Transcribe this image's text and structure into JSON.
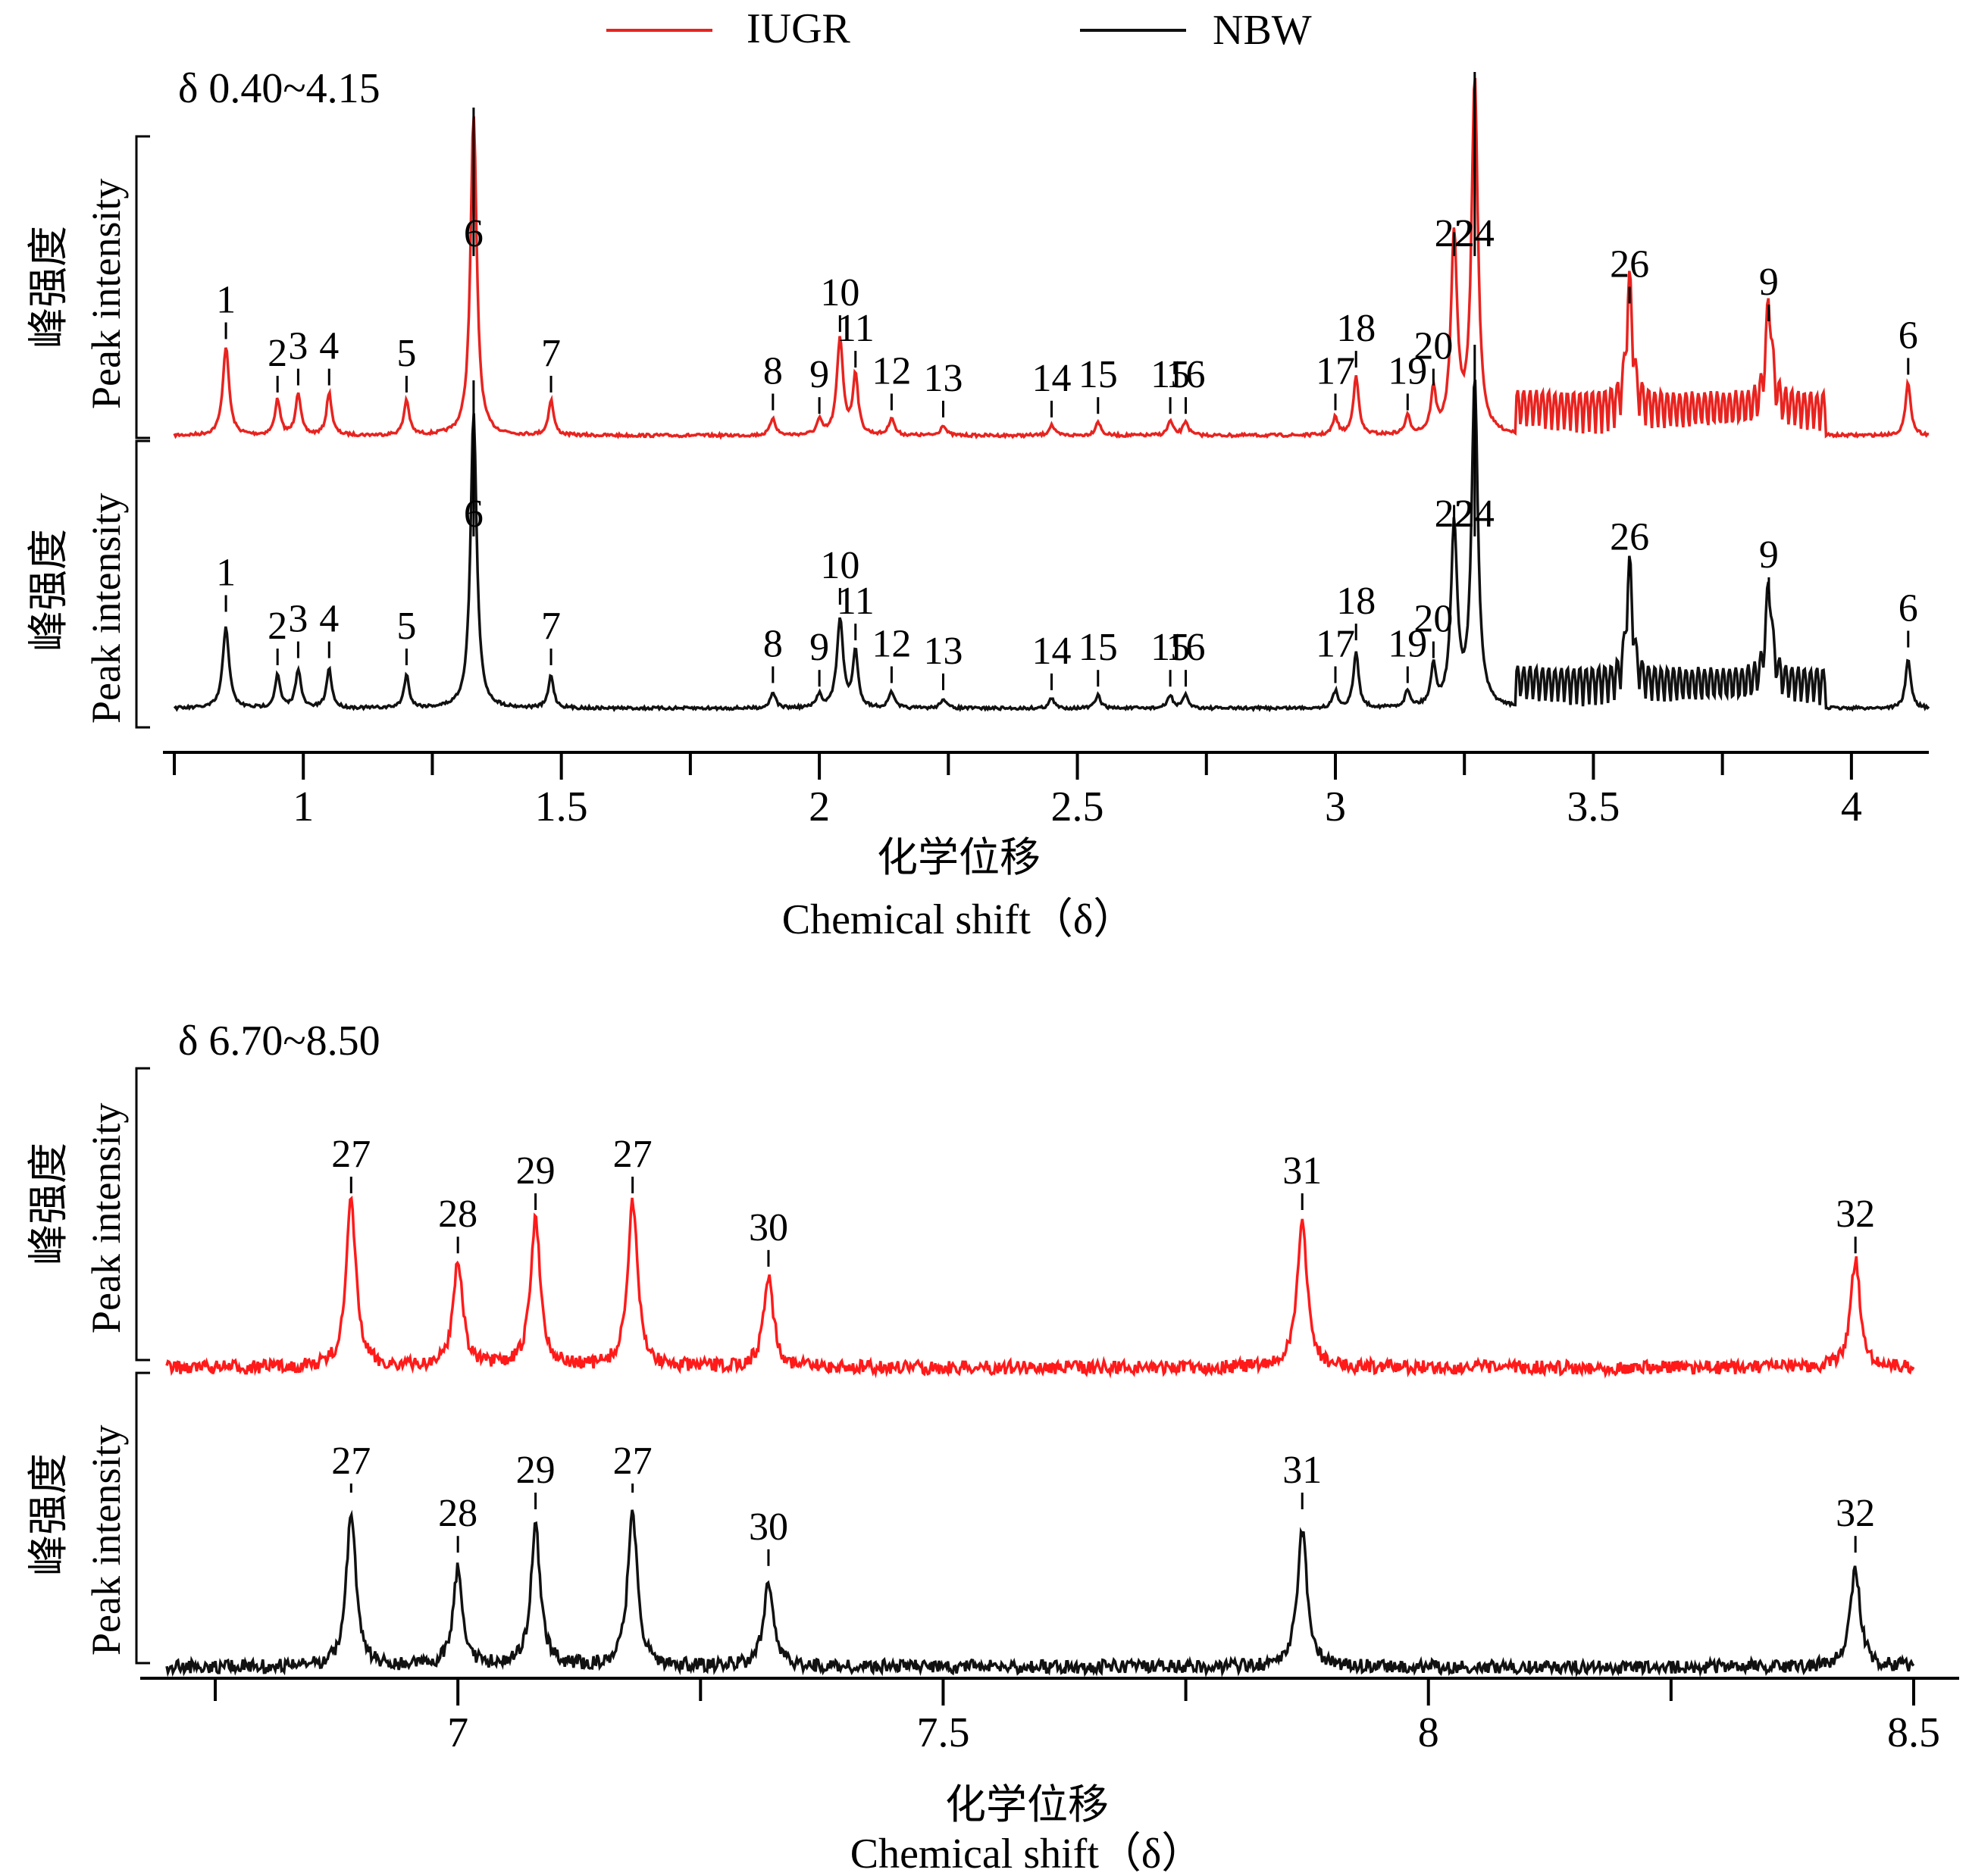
{
  "legend": [
    {
      "label": "IUGR",
      "color": "#e8231f"
    },
    {
      "label": "NBW",
      "color": "#111111"
    }
  ],
  "y_axis_label_cn": "峰强度",
  "y_axis_label_en": "Peak intensity",
  "x_axis_label_cn": "化学位移",
  "x_axis_label_en": "Chemical shift（δ）",
  "chart_data": [
    {
      "type": "line",
      "title": "δ 0.40~4.15",
      "xlim": [
        0.75,
        4.15
      ],
      "ticks": [
        "1",
        "1.5",
        "2",
        "2.5",
        "3",
        "3.5",
        "4"
      ],
      "grid": false,
      "series": [
        {
          "name": "IUGR"
        },
        {
          "name": "NBW"
        }
      ],
      "peaks": [
        {
          "label": "1",
          "shift": 0.85,
          "height": 0.25
        },
        {
          "label": "2",
          "shift": 0.95,
          "height": 0.1
        },
        {
          "label": "3",
          "shift": 0.99,
          "height": 0.12
        },
        {
          "label": "4",
          "shift": 1.05,
          "height": 0.12
        },
        {
          "label": "5",
          "shift": 1.2,
          "height": 0.1
        },
        {
          "label": "6",
          "shift": 1.33,
          "height": 0.9
        },
        {
          "label": "7",
          "shift": 1.48,
          "height": 0.1
        },
        {
          "label": "8",
          "shift": 1.91,
          "height": 0.05
        },
        {
          "label": "9",
          "shift": 2.0,
          "height": 0.04
        },
        {
          "label": "10",
          "shift": 2.04,
          "height": 0.27
        },
        {
          "label": "11",
          "shift": 2.07,
          "height": 0.17
        },
        {
          "label": "12",
          "shift": 2.14,
          "height": 0.05
        },
        {
          "label": "13",
          "shift": 2.24,
          "height": 0.03
        },
        {
          "label": "14",
          "shift": 2.45,
          "height": 0.03
        },
        {
          "label": "15",
          "shift": 2.54,
          "height": 0.04
        },
        {
          "label": "15",
          "shift": 2.68,
          "height": 0.04
        },
        {
          "label": "16",
          "shift": 2.71,
          "height": 0.04
        },
        {
          "label": "17",
          "shift": 3.0,
          "height": 0.05
        },
        {
          "label": "18",
          "shift": 3.04,
          "height": 0.17
        },
        {
          "label": "19",
          "shift": 3.14,
          "height": 0.05
        },
        {
          "label": "20",
          "shift": 3.19,
          "height": 0.12
        },
        {
          "label": "22",
          "shift": 3.23,
          "height": 0.55
        },
        {
          "label": "24",
          "shift": 3.27,
          "height": 1.0
        },
        {
          "label": "26",
          "shift": 3.57,
          "height": 0.35
        },
        {
          "label": "9",
          "shift": 3.84,
          "height": 0.3
        },
        {
          "label": "6",
          "shift": 4.11,
          "height": 0.15
        }
      ]
    },
    {
      "type": "line",
      "title": "δ 6.70~8.50",
      "xlim": [
        6.7,
        8.5
      ],
      "ticks": [
        "7",
        "7.5",
        "8",
        "8.5"
      ],
      "grid": false,
      "series": [
        {
          "name": "IUGR"
        },
        {
          "name": "NBW"
        }
      ],
      "peaks": [
        {
          "label": "27",
          "shift": 6.89,
          "height": 0.5
        },
        {
          "label": "28",
          "shift": 7.0,
          "height": 0.32
        },
        {
          "label": "29",
          "shift": 7.08,
          "height": 0.45
        },
        {
          "label": "27",
          "shift": 7.18,
          "height": 0.5
        },
        {
          "label": "30",
          "shift": 7.32,
          "height": 0.28
        },
        {
          "label": "31",
          "shift": 7.87,
          "height": 0.45
        },
        {
          "label": "32",
          "shift": 8.44,
          "height": 0.32
        }
      ]
    }
  ]
}
